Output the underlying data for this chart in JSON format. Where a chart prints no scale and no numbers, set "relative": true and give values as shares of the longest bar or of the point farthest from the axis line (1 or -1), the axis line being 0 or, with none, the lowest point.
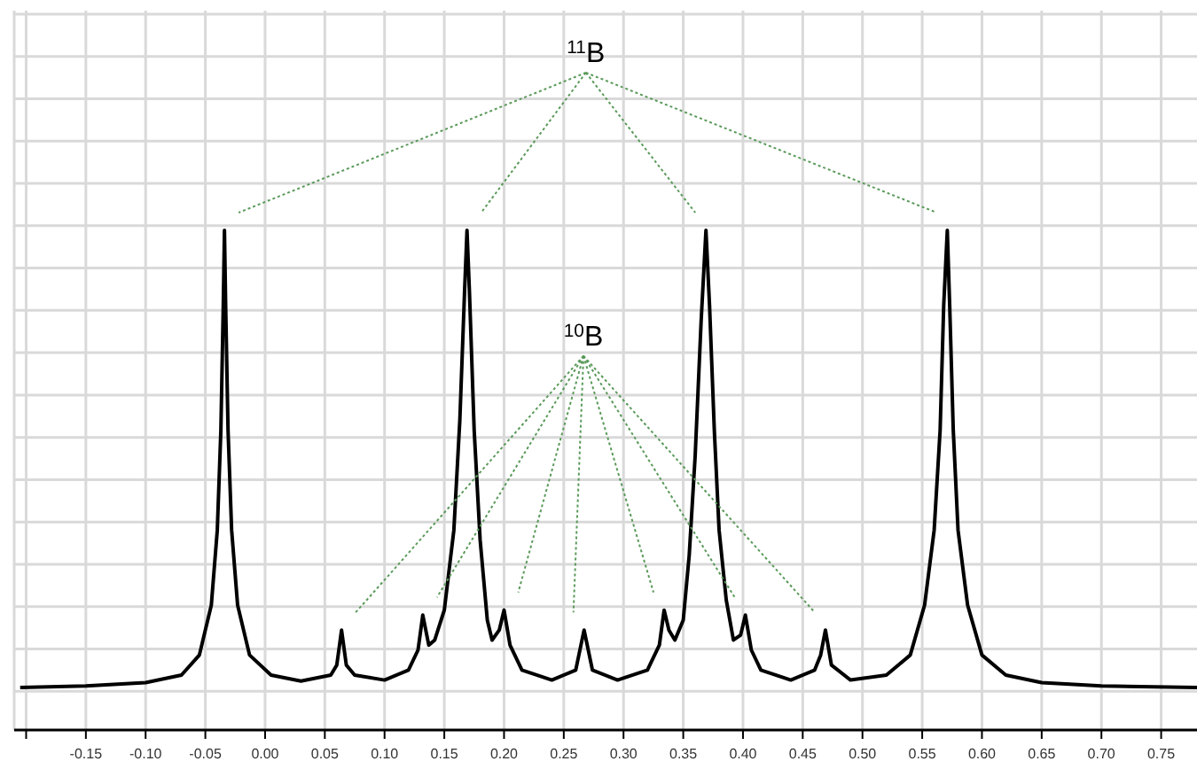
{
  "chart_data": {
    "type": "line",
    "relative": true,
    "grid": true,
    "line_style": "solid",
    "xlim": [
      -0.21,
      0.78
    ],
    "xticks": [
      {
        "value": -0.2,
        "label": null
      },
      -0.15,
      {
        "value": -0.1,
        "label": "-0.10"
      },
      -0.05,
      {
        "value": 0,
        "label": "0.00"
      },
      0.05,
      {
        "value": 0.1,
        "label": "0.10"
      },
      0.15,
      {
        "value": 0.2,
        "label": "0.20"
      },
      0.25,
      {
        "value": 0.3,
        "label": "0.30"
      },
      0.35,
      {
        "value": 0.4,
        "label": "0.40"
      },
      0.45,
      {
        "value": 0.5,
        "label": "0.50"
      },
      0.55,
      {
        "value": 0.6,
        "label": "0.60"
      },
      0.65,
      {
        "value": 0.7,
        "label": "0.70"
      },
      0.75
    ],
    "annotations": [
      "$^{11}$B",
      "$^{10}$B"
    ],
    "series": [
      {
        "color": "#000000",
        "x": [
          -0.205,
          -0.15,
          -0.1,
          -0.07,
          -0.055,
          -0.045,
          -0.04,
          -0.037,
          -0.035,
          -0.034,
          -0.033,
          -0.031,
          -0.028,
          -0.023,
          -0.013,
          0.005,
          0.03,
          0.055,
          0.06,
          0.064,
          0.068,
          0.075,
          0.1,
          0.12,
          0.128,
          0.132,
          0.137,
          0.142,
          0.15,
          0.158,
          0.163,
          0.167,
          0.169,
          0.171,
          0.175,
          0.18,
          0.186,
          0.19,
          0.196,
          0.2,
          0.205,
          0.215,
          0.24,
          0.26,
          0.267,
          0.274,
          0.295,
          0.32,
          0.33,
          0.334,
          0.338,
          0.343,
          0.35,
          0.355,
          0.36,
          0.365,
          0.369,
          0.372,
          0.376,
          0.38,
          0.386,
          0.392,
          0.398,
          0.402,
          0.407,
          0.415,
          0.44,
          0.46,
          0.465,
          0.469,
          0.474,
          0.49,
          0.52,
          0.54,
          0.552,
          0.56,
          0.565,
          0.568,
          0.571,
          0.573,
          0.576,
          0.58,
          0.588,
          0.6,
          0.62,
          0.65,
          0.7,
          0.78
        ],
        "values": [
          0.085,
          0.088,
          0.095,
          0.11,
          0.15,
          0.25,
          0.4,
          0.6,
          0.85,
          1,
          0.85,
          0.6,
          0.4,
          0.25,
          0.15,
          0.11,
          0.098,
          0.11,
          0.13,
          0.2,
          0.13,
          0.11,
          0.1,
          0.12,
          0.16,
          0.23,
          0.17,
          0.18,
          0.24,
          0.4,
          0.62,
          0.88,
          1,
          0.88,
          0.6,
          0.38,
          0.22,
          0.18,
          0.2,
          0.24,
          0.17,
          0.12,
          0.1,
          0.12,
          0.2,
          0.12,
          0.1,
          0.12,
          0.17,
          0.24,
          0.2,
          0.18,
          0.22,
          0.35,
          0.55,
          0.82,
          1,
          0.85,
          0.6,
          0.4,
          0.26,
          0.18,
          0.19,
          0.23,
          0.16,
          0.12,
          0.1,
          0.12,
          0.15,
          0.2,
          0.13,
          0.1,
          0.11,
          0.15,
          0.25,
          0.4,
          0.6,
          0.85,
          1,
          0.85,
          0.6,
          0.4,
          0.25,
          0.15,
          0.11,
          0.095,
          0.088,
          0.085
        ]
      }
    ]
  }
}
